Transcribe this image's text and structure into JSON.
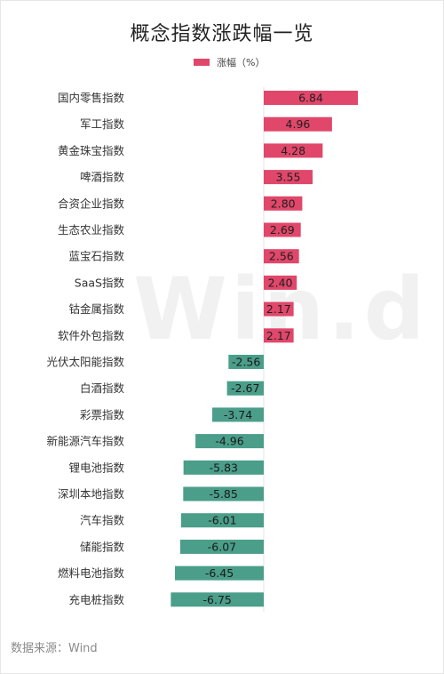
{
  "title": "概念指数涨跌幅一览",
  "source": "数据来源：Wind",
  "watermark": "Win.d",
  "chart_data": {
    "type": "bar",
    "orientation": "horizontal",
    "title": "概念指数涨跌幅一览",
    "legend": {
      "label": "涨幅（%）",
      "position": "top"
    },
    "categories": [
      "国内零售指数",
      "军工指数",
      "黄金珠宝指数",
      "啤酒指数",
      "合资企业指数",
      "生态农业指数",
      "蓝宝石指数",
      "SaaS指数",
      "钴金属指数",
      "软件外包指数",
      "光伏太阳能指数",
      "白酒指数",
      "彩票指数",
      "新能源汽车指数",
      "锂电池指数",
      "深圳本地指数",
      "汽车指数",
      "储能指数",
      "燃料电池指数",
      "充电桩指数"
    ],
    "series": [
      {
        "name": "涨幅（%）",
        "values": [
          6.84,
          4.96,
          4.28,
          3.55,
          2.8,
          2.69,
          2.56,
          2.4,
          2.17,
          2.17,
          -2.56,
          -2.67,
          -3.74,
          -4.96,
          -5.83,
          -5.85,
          -6.01,
          -6.07,
          -6.45,
          -6.75
        ]
      }
    ],
    "value_labels": [
      "6.84",
      "4.96",
      "4.28",
      "3.55",
      "2.80",
      "2.69",
      "2.56",
      "2.40",
      "2.17",
      "2.17",
      "-2.56",
      "-2.67",
      "-3.74",
      "-4.96",
      "-5.83",
      "-5.85",
      "-6.01",
      "-6.07",
      "-6.45",
      "-6.75"
    ],
    "colors": {
      "positive": "#e0476a",
      "negative": "#4a9e8a"
    },
    "grid": false
  }
}
